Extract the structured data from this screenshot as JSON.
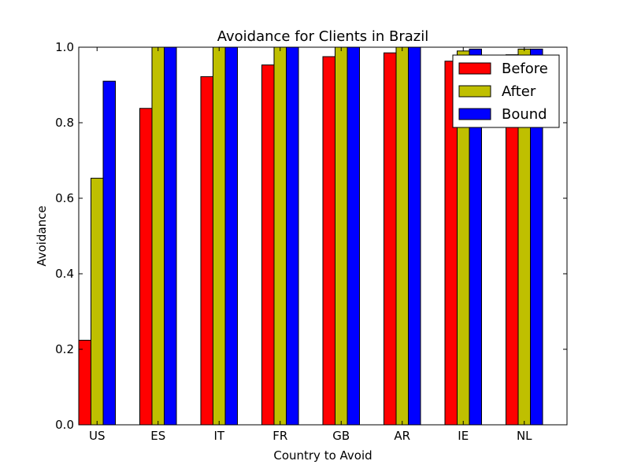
{
  "chart_data": {
    "type": "bar",
    "title": "Avoidance for Clients in Brazil",
    "xlabel": "Country to Avoid",
    "ylabel": "Avoidance",
    "ylim": [
      0,
      1.0
    ],
    "yticks": [
      "0.0",
      "0.2",
      "0.4",
      "0.6",
      "0.8",
      "1.0"
    ],
    "categories": [
      "US",
      "ES",
      "IT",
      "FR",
      "GB",
      "AR",
      "IE",
      "NL"
    ],
    "legend_position": "top-right",
    "grid": false,
    "series": [
      {
        "name": "Before",
        "color": "#ff0000",
        "values": [
          0.224,
          0.838,
          0.922,
          0.953,
          0.975,
          0.985,
          0.963,
          0.98
        ]
      },
      {
        "name": "After",
        "color": "#bfbf00",
        "values": [
          0.653,
          1.0,
          1.0,
          1.0,
          1.0,
          1.0,
          0.99,
          0.995
        ]
      },
      {
        "name": "Bound",
        "color": "#0000ff",
        "values": [
          0.91,
          1.0,
          1.0,
          1.0,
          1.0,
          1.0,
          0.995,
          0.995
        ]
      }
    ]
  }
}
